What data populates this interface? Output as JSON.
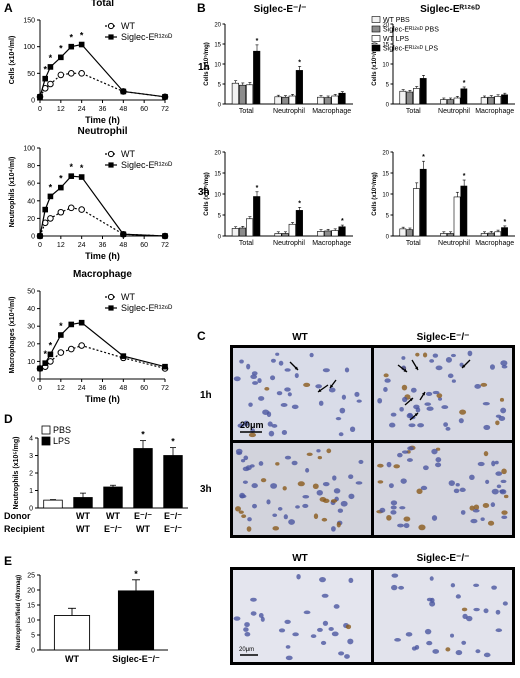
{
  "panels": {
    "A": "A",
    "B": "B",
    "C": "C",
    "D": "D",
    "E": "E"
  },
  "panel_b_titles": [
    "Siglec-E⁻/⁻",
    "Siglec-Eᴿ¹²⁶ᴰ"
  ],
  "panel_b_rows": [
    "1h",
    "3h"
  ],
  "panel_c": {
    "col_wt": "WT",
    "col_ko": "Siglec-E⁻/⁻",
    "row_1h": "1h",
    "row_3h": "3h",
    "scale": "20μm"
  },
  "panel_e_images": {
    "col_wt": "WT",
    "col_ko": "Siglec-E⁻/⁻",
    "scale": "20μm"
  },
  "chart_data": [
    {
      "id": "A-total",
      "type": "line",
      "title": "Total",
      "xlabel": "Time (h)",
      "ylabel": "Cells (x10⁴/ml)",
      "x": [
        0,
        3,
        6,
        12,
        18,
        24,
        48,
        72
      ],
      "xticks": [
        0,
        12,
        24,
        36,
        48,
        60,
        72
      ],
      "yticks": [
        0,
        50,
        100,
        150
      ],
      "ylim": [
        0,
        150
      ],
      "xlim": [
        0,
        72
      ],
      "series": [
        {
          "name": "WT",
          "values": [
            6,
            22,
            30,
            47,
            50,
            50,
            16,
            6
          ],
          "style": "dashed-open"
        },
        {
          "name": "Siglec-Eᴿ¹²⁶ᴰ",
          "values": [
            6,
            40,
            62,
            80,
            100,
            104,
            16,
            6
          ],
          "style": "solid-filled"
        }
      ],
      "significant_at": [
        3,
        6,
        12,
        18,
        24
      ]
    },
    {
      "id": "A-neutrophil",
      "type": "line",
      "title": "Neutrophil",
      "xlabel": "Time (h)",
      "ylabel": "Neutrophils (x10⁴/ml)",
      "x": [
        0,
        3,
        6,
        12,
        18,
        24,
        48,
        72
      ],
      "xticks": [
        0,
        12,
        24,
        36,
        48,
        60,
        72
      ],
      "yticks": [
        0,
        20,
        40,
        60,
        80,
        100
      ],
      "ylim": [
        0,
        100
      ],
      "xlim": [
        0,
        72
      ],
      "series": [
        {
          "name": "WT",
          "values": [
            0,
            15,
            20,
            27,
            32,
            30,
            2,
            0
          ],
          "style": "dashed-open"
        },
        {
          "name": "Siglec-Eᴿ¹²⁶ᴰ",
          "values": [
            0,
            30,
            45,
            55,
            68,
            67,
            2,
            0
          ],
          "style": "solid-filled"
        }
      ],
      "significant_at": [
        6,
        12,
        18,
        24
      ]
    },
    {
      "id": "A-macrophage",
      "type": "line",
      "title": "Macrophage",
      "xlabel": "Time (h)",
      "ylabel": "Macrophages (x10⁴/ml)",
      "x": [
        0,
        3,
        6,
        12,
        18,
        24,
        48,
        72
      ],
      "xticks": [
        0,
        12,
        24,
        36,
        48,
        60,
        72
      ],
      "yticks": [
        0,
        10,
        20,
        30,
        40,
        50
      ],
      "ylim": [
        0,
        50
      ],
      "xlim": [
        0,
        72
      ],
      "series": [
        {
          "name": "WT",
          "values": [
            6,
            7,
            10,
            15,
            17,
            19,
            12,
            6
          ],
          "style": "dashed-open"
        },
        {
          "name": "Siglec-Eᴿ¹²⁶ᴰ",
          "values": [
            6,
            9,
            14,
            25,
            31,
            32,
            13,
            7
          ],
          "style": "solid-filled"
        }
      ],
      "significant_at": [
        3,
        6,
        12
      ]
    },
    {
      "id": "B-ko-1h",
      "type": "bar",
      "ylabel": "Cells (x10⁵/mg)",
      "categories": [
        "Total",
        "Neutrophil",
        "Macrophage"
      ],
      "yticks": [
        0,
        5,
        10,
        15,
        20
      ],
      "ylim": [
        0,
        20
      ],
      "series": [
        {
          "name": "WT PBS",
          "values": [
            5.2,
            1.8,
            1.7
          ]
        },
        {
          "name": "Siglec-Eᴿ¹²⁶ᴰ PBS",
          "values": [
            4.7,
            1.7,
            1.6
          ]
        },
        {
          "name": "WT LPS",
          "values": [
            4.8,
            2.0,
            2.0
          ]
        },
        {
          "name": "Siglec-Eᴿ¹²⁶ᴰ LPS",
          "values": [
            13.2,
            8.4,
            2.7
          ]
        }
      ],
      "significant": [
        [
          0,
          3
        ],
        [
          1,
          3
        ]
      ]
    },
    {
      "id": "B-rd-1h",
      "type": "bar",
      "ylabel": "Cells (x10⁵/mg)",
      "categories": [
        "Total",
        "Neutrophil",
        "Macrophage"
      ],
      "yticks": [
        0,
        5,
        10,
        15,
        20
      ],
      "ylim": [
        0,
        20
      ],
      "series": [
        {
          "name": "WT PBS",
          "values": [
            3.2,
            1.1,
            1.6
          ]
        },
        {
          "name": "Siglec-Eᴿ¹²⁶ᴰ PBS",
          "values": [
            3.0,
            1.1,
            1.7
          ]
        },
        {
          "name": "WT LPS",
          "values": [
            3.9,
            1.5,
            1.9
          ]
        },
        {
          "name": "Siglec-Eᴿ¹²⁶ᴰ LPS",
          "values": [
            6.4,
            3.8,
            2.3
          ]
        }
      ],
      "significant": [
        [
          1,
          3
        ]
      ]
    },
    {
      "id": "B-ko-3h",
      "type": "bar",
      "ylabel": "Cells (x10⁵/mg)",
      "categories": [
        "Total",
        "Neutrophil",
        "Macrophage"
      ],
      "yticks": [
        0,
        5,
        10,
        15,
        20
      ],
      "ylim": [
        0,
        20
      ],
      "series": [
        {
          "name": "WT PBS",
          "values": [
            1.8,
            0.6,
            1.1
          ]
        },
        {
          "name": "Siglec-Eᴿ¹²⁶ᴰ PBS",
          "values": [
            1.9,
            0.6,
            1.2
          ]
        },
        {
          "name": "WT LPS",
          "values": [
            4.1,
            2.8,
            1.3
          ]
        },
        {
          "name": "Siglec-Eᴿ¹²⁶ᴰ LPS",
          "values": [
            9.4,
            6.1,
            2.2
          ]
        }
      ],
      "significant": [
        [
          0,
          3
        ],
        [
          1,
          3
        ],
        [
          2,
          3
        ]
      ]
    },
    {
      "id": "B-rd-3h",
      "type": "bar",
      "ylabel": "Cells (x10⁵/mg)",
      "categories": [
        "Total",
        "Neutrophil",
        "Macrophage"
      ],
      "yticks": [
        0,
        5,
        10,
        15,
        20
      ],
      "ylim": [
        0,
        20
      ],
      "series": [
        {
          "name": "WT PBS",
          "values": [
            1.7,
            0.6,
            0.6
          ]
        },
        {
          "name": "Siglec-Eᴿ¹²⁶ᴰ PBS",
          "values": [
            1.5,
            0.6,
            0.7
          ]
        },
        {
          "name": "WT LPS",
          "values": [
            11.3,
            9.3,
            1.0
          ]
        },
        {
          "name": "Siglec-Eᴿ¹²⁶ᴰ LPS",
          "values": [
            15.9,
            11.9,
            2.0
          ]
        }
      ],
      "significant": [
        [
          0,
          3
        ],
        [
          1,
          3
        ],
        [
          2,
          3
        ]
      ]
    },
    {
      "id": "D",
      "type": "bar",
      "ylabel": "Neutrophils (x10⁵/mg)",
      "yticks": [
        0,
        1,
        2,
        3,
        4
      ],
      "ylim": [
        0,
        4
      ],
      "legend": [
        "PBS",
        "LPS"
      ],
      "row_labels": [
        "Donor",
        "Recipient"
      ],
      "categories": [
        {
          "donor": "",
          "recipient": "",
          "treatment": "PBS"
        },
        {
          "donor": "WT",
          "recipient": "WT",
          "treatment": "LPS"
        },
        {
          "donor": "WT",
          "recipient": "E⁻/⁻",
          "treatment": "LPS"
        },
        {
          "donor": "E⁻/⁻",
          "recipient": "WT",
          "treatment": "LPS"
        },
        {
          "donor": "E⁻/⁻",
          "recipient": "E⁻/⁻",
          "treatment": "LPS"
        }
      ],
      "values": [
        0.45,
        0.6,
        1.2,
        3.4,
        3.0
      ],
      "errors": [
        0.03,
        0.25,
        0.1,
        0.45,
        0.45
      ],
      "significant_at": [
        3,
        4
      ]
    },
    {
      "id": "E",
      "type": "bar",
      "ylabel": "Neutrophils/field (40xmag)",
      "categories": [
        "WT",
        "Siglec-E⁻/⁻"
      ],
      "values": [
        11.5,
        19.7
      ],
      "errors": [
        2.4,
        3.7
      ],
      "yticks": [
        0,
        5,
        10,
        15,
        20,
        25
      ],
      "ylim": [
        0,
        25
      ],
      "fills": [
        "#ffffff",
        "#000000"
      ],
      "significant_at": [
        1
      ]
    }
  ]
}
